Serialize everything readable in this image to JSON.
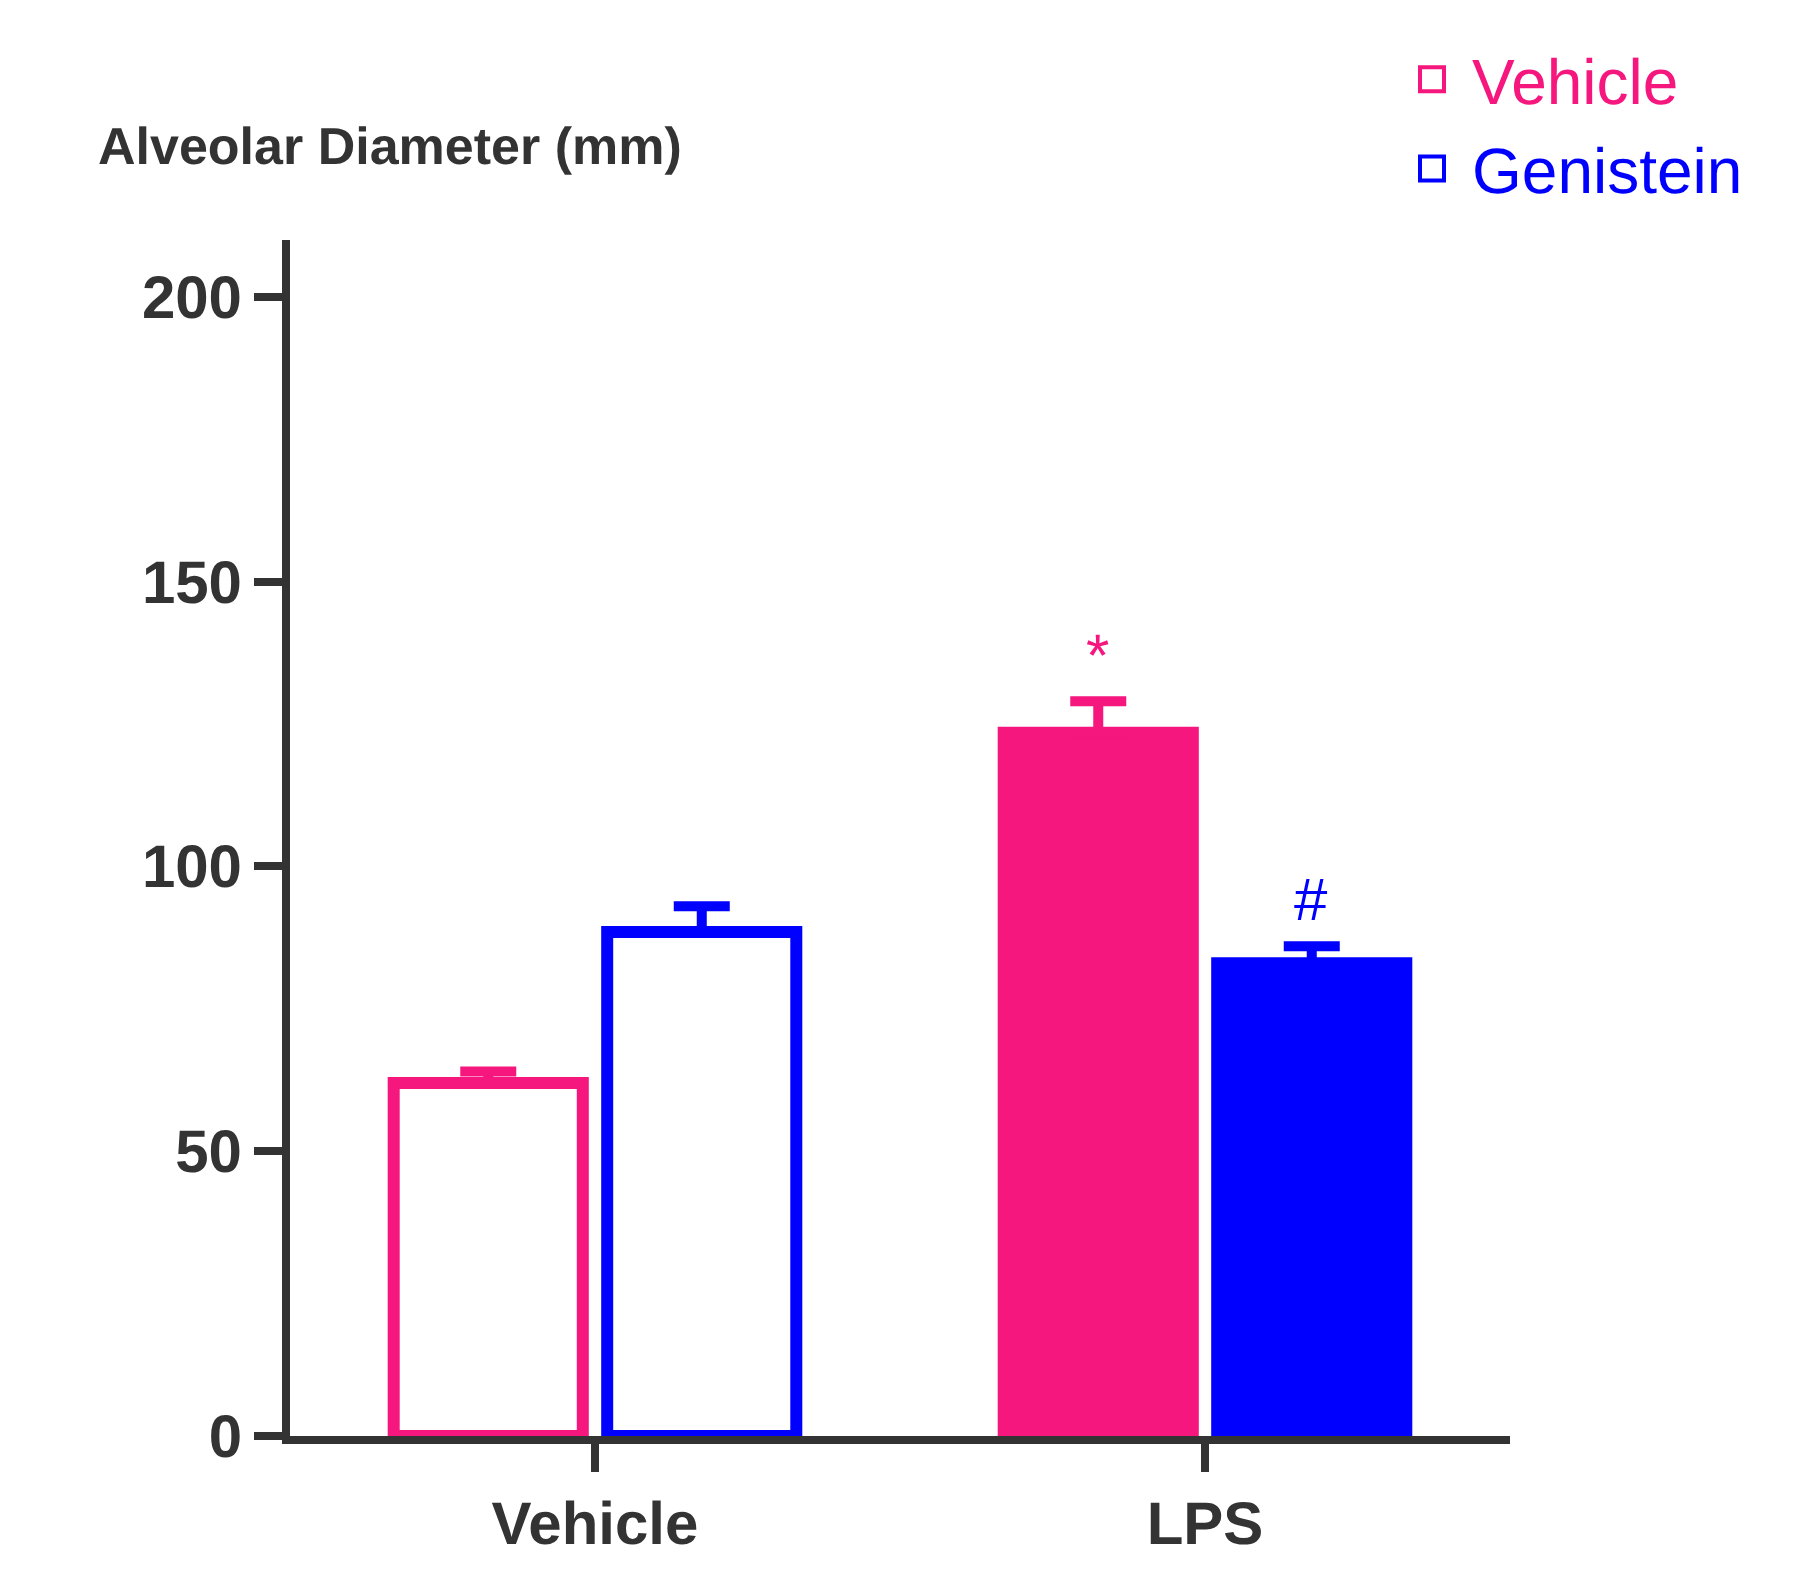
{
  "chart_data": {
    "type": "bar",
    "ylabel": "Alveolar Diameter (mm)",
    "categories": [
      "Vehicle",
      "LPS"
    ],
    "series": [
      {
        "name": "Vehicle",
        "color": "#f5167e",
        "colors": [
          "#ffffff",
          "#f5167e"
        ],
        "values": [
          62,
          123.5
        ],
        "errors": [
          [
            62,
            64
          ],
          [
            123.5,
            129
          ]
        ]
      },
      {
        "name": "Genistein",
        "color": "#0000ff",
        "colors": [
          "#ffffff",
          "#0000ff"
        ],
        "values": [
          88.5,
          83
        ],
        "errors": [
          [
            88.5,
            93
          ],
          [
            83,
            86
          ]
        ]
      }
    ],
    "ylim": [
      0,
      210
    ],
    "yticks": [
      0,
      50,
      100,
      150,
      200
    ],
    "legend": "top right",
    "annotations": [
      "*",
      "#"
    ]
  }
}
